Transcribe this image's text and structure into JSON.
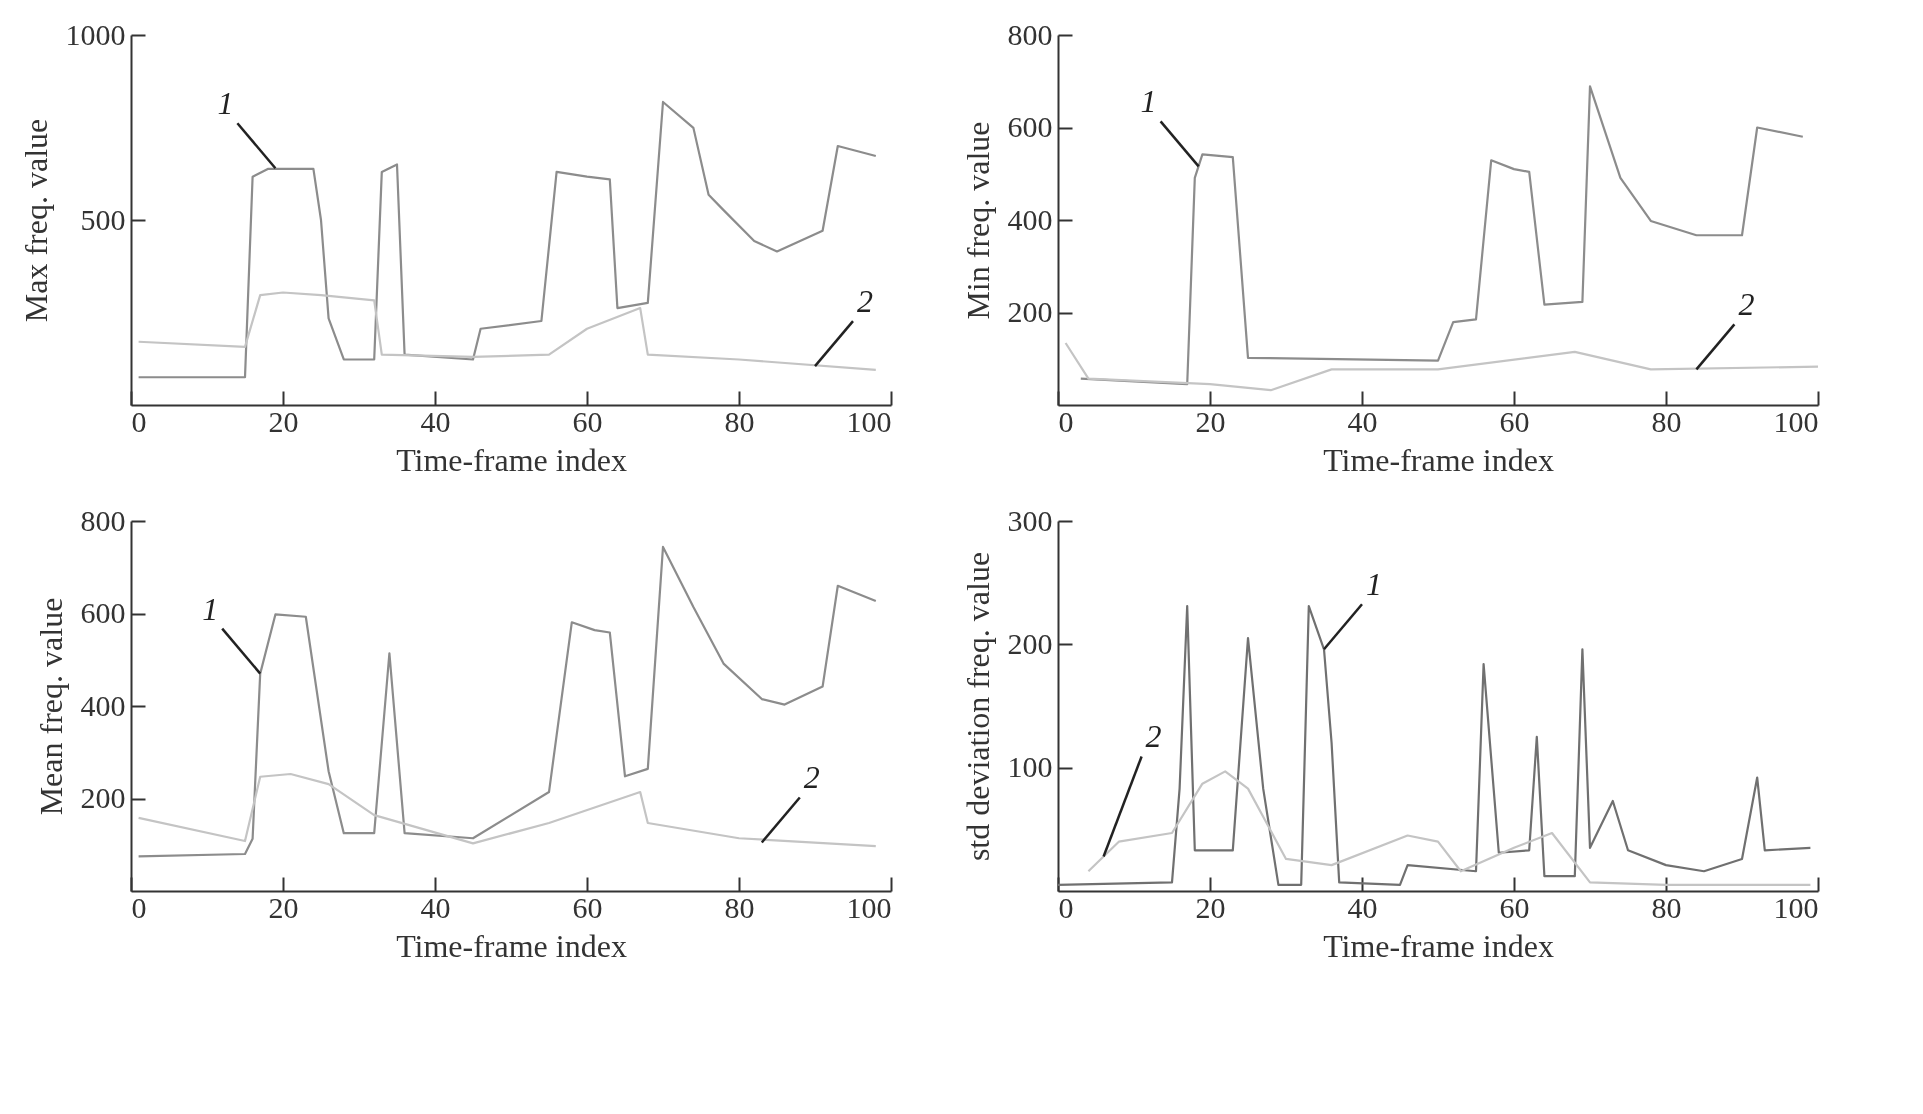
{
  "chart_data": [
    {
      "type": "line",
      "xlabel": "Time-frame index",
      "ylabel": "Max freq. value",
      "xlim": [
        0,
        100
      ],
      "xticks": [
        0,
        20,
        40,
        60,
        80,
        100
      ],
      "ylim": [
        0,
        1000
      ],
      "yticks": [
        500,
        1000
      ],
      "annotations": [
        {
          "text": "1",
          "x": 19,
          "y": 640
        },
        {
          "text": "2",
          "x": 90,
          "y": 105
        }
      ],
      "series": [
        {
          "color": "#8c8c8c",
          "x": [
            1,
            15,
            16,
            18,
            24,
            25,
            26,
            28,
            32,
            33,
            35,
            36,
            45,
            46,
            54,
            56,
            60,
            63,
            64,
            68,
            70,
            74,
            76,
            78,
            82,
            85,
            91,
            93,
            98
          ],
          "values": [
            75,
            75,
            617,
            638,
            638,
            500,
            234,
            123,
            123,
            630,
            650,
            136,
            123,
            206,
            227,
            630,
            617,
            610,
            262,
            276,
            819,
            749,
            568,
            526,
            443,
            415,
            471,
            700,
            673
          ]
        },
        {
          "color": "#c4c4c4",
          "x": [
            1,
            15,
            17,
            20,
            25,
            32,
            33,
            45,
            55,
            60,
            67,
            68,
            80,
            98
          ],
          "values": [
            171,
            157,
            297,
            304,
            297,
            283,
            136,
            130,
            136,
            206,
            262,
            136,
            123,
            95
          ]
        }
      ]
    },
    {
      "type": "line",
      "xlabel": "Time-frame index",
      "ylabel": "Min freq. value",
      "xlim": [
        0,
        100
      ],
      "xticks": [
        0,
        20,
        40,
        60,
        80,
        100
      ],
      "ylim": [
        0,
        800
      ],
      "yticks": [
        200,
        400,
        600,
        800
      ],
      "annotations": [
        {
          "text": "1",
          "x": 18.5,
          "y": 516
        },
        {
          "text": "2",
          "x": 84,
          "y": 77
        }
      ],
      "series": [
        {
          "color": "#8c8c8c",
          "x": [
            3,
            17,
            18,
            19,
            23,
            25,
            50,
            52,
            55,
            57,
            60,
            62,
            64,
            69,
            70,
            74,
            78,
            84,
            90,
            92,
            98
          ],
          "values": [
            57,
            45,
            491,
            542,
            536,
            102,
            96,
            179,
            185,
            529,
            510,
            504,
            217,
            223,
            689,
            491,
            398,
            367,
            367,
            600,
            580
          ]
        },
        {
          "color": "#c4c4c4",
          "x": [
            1,
            4,
            20,
            28,
            36,
            50,
            68,
            78,
            100
          ],
          "values": [
            134,
            57,
            45,
            32,
            77,
            77,
            115,
            77,
            83
          ]
        }
      ]
    },
    {
      "type": "line",
      "xlabel": "Time-frame index",
      "ylabel": "Mean freq. value",
      "xlim": [
        0,
        100
      ],
      "xticks": [
        0,
        20,
        40,
        60,
        80,
        100
      ],
      "ylim": [
        0,
        800
      ],
      "yticks": [
        200,
        400,
        600,
        800
      ],
      "annotations": [
        {
          "text": "1",
          "x": 17,
          "y": 470
        },
        {
          "text": "2",
          "x": 83,
          "y": 105
        }
      ],
      "series": [
        {
          "color": "#8c8c8c",
          "x": [
            1,
            15,
            16,
            17,
            19,
            23,
            26,
            28,
            32,
            34,
            36,
            45,
            55,
            58,
            61,
            63,
            65,
            68,
            70,
            74,
            78,
            83,
            86,
            91,
            93,
            98
          ],
          "values": [
            75,
            80,
            113,
            470,
            598,
            593,
            259,
            125,
            125,
            514,
            125,
            114,
            214,
            581,
            564,
            559,
            248,
            264,
            744,
            614,
            491,
            415,
            403,
            442,
            660,
            627
          ]
        },
        {
          "color": "#c4c4c4",
          "x": [
            1,
            15,
            17,
            21,
            26,
            32,
            45,
            55,
            67,
            68,
            80,
            98
          ],
          "values": [
            158,
            108,
            247,
            253,
            231,
            164,
            103,
            147,
            214,
            147,
            114,
            97
          ]
        }
      ]
    },
    {
      "type": "line",
      "xlabel": "Time-frame index",
      "ylabel": "std deviation freq. value",
      "xlim": [
        0,
        100
      ],
      "xticks": [
        0,
        20,
        40,
        60,
        80,
        100
      ],
      "ylim": [
        0,
        300
      ],
      "yticks": [
        100,
        200,
        300
      ],
      "annotations": [
        {
          "text": "1",
          "x": 35,
          "y": 196
        },
        {
          "text": "2",
          "x": 6,
          "y": 28
        }
      ],
      "series": [
        {
          "color": "#707070",
          "x": [
            0,
            15,
            16,
            17,
            18,
            23,
            25,
            27,
            29,
            32,
            33,
            35,
            36,
            37,
            45,
            46,
            55,
            56,
            58,
            62,
            63,
            64,
            68,
            69,
            70,
            73,
            75,
            80,
            85,
            90,
            92,
            93,
            99
          ],
          "values": [
            5,
            7,
            83,
            231,
            33,
            33,
            205,
            83,
            5,
            5,
            231,
            196,
            120,
            7,
            5,
            21,
            16,
            184,
            31,
            33,
            125,
            12,
            12,
            196,
            35,
            73,
            33,
            21,
            16,
            26,
            92,
            33,
            35
          ]
        },
        {
          "color": "#c4c4c4",
          "x": [
            4,
            8,
            15,
            19,
            22,
            25,
            30,
            36,
            46,
            50,
            53,
            60,
            65,
            70,
            80,
            99
          ],
          "values": [
            16,
            40,
            47,
            87,
            97,
            83,
            26,
            21,
            45,
            40,
            16,
            35,
            47,
            7,
            5,
            5
          ]
        }
      ]
    }
  ]
}
